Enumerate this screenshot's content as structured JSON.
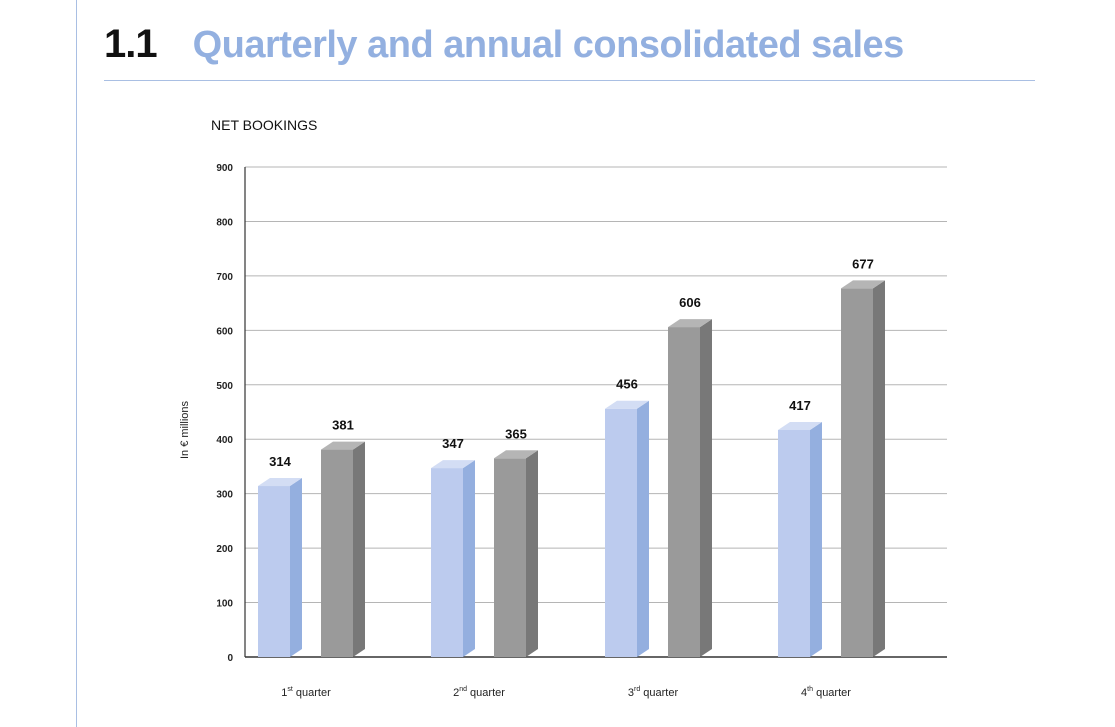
{
  "heading": {
    "number": "1.1",
    "title": "Quarterly and annual consolidated sales"
  },
  "colors": {
    "series_a_front": "#bccbee",
    "series_a_side": "#94afdf",
    "series_b_front": "#9a9a9a",
    "series_b_side": "#787878",
    "accent": "#93b0e0"
  },
  "chart_data": {
    "type": "bar",
    "title": "NET BOOKINGS",
    "xlabel": "",
    "ylabel": "In € millions",
    "ylim": [
      0,
      900
    ],
    "yticks": [
      "0",
      "100",
      "200",
      "300",
      "400",
      "500",
      "600",
      "700",
      "800",
      "900"
    ],
    "grid": true,
    "categories": [
      {
        "num": "1",
        "sup": "st",
        "rest": " quarter"
      },
      {
        "num": "2",
        "sup": "nd",
        "rest": " quarter"
      },
      {
        "num": "3",
        "sup": "rd",
        "rest": " quarter"
      },
      {
        "num": "4",
        "sup": "th",
        "rest": " quarter"
      }
    ],
    "series": [
      {
        "values": [
          314,
          347,
          456,
          417
        ]
      },
      {
        "values": [
          381,
          365,
          606,
          677
        ]
      }
    ]
  }
}
